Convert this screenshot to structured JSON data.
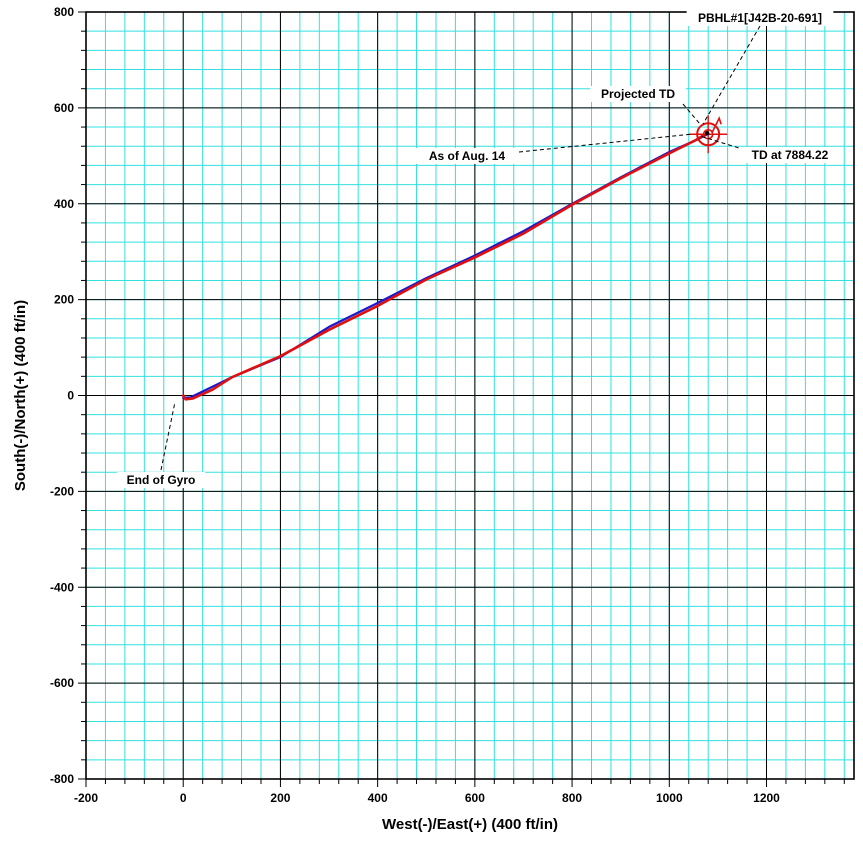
{
  "chart_data": {
    "type": "line",
    "xlabel": "West(-)/East(+) (400 ft/in)",
    "ylabel": "South(-)/North(+) (400 ft/in)",
    "xlim": [
      -200,
      1380
    ],
    "ylim": [
      -800,
      800
    ],
    "x_ticks": [
      -200,
      0,
      200,
      400,
      600,
      800,
      1000,
      1200
    ],
    "y_ticks": [
      -800,
      -600,
      -400,
      -200,
      0,
      200,
      400,
      600,
      800
    ],
    "x_tick_labels": [
      "-200",
      "0",
      "200",
      "400",
      "600",
      "800",
      "1000",
      "1200"
    ],
    "y_tick_labels": [
      "-800",
      "-600",
      "-400",
      "-200",
      "0",
      "200",
      "400",
      "600",
      "800"
    ],
    "grid": true,
    "minor_grid_step": 40,
    "colors": {
      "minor_grid": "#33e0e0",
      "major_grid": "#000000",
      "planned": "#1a1acc",
      "actual": "#e01010",
      "target": "#e01010"
    },
    "series": [
      {
        "key": "planned",
        "x": [
          0,
          15,
          100,
          200,
          300,
          400,
          500,
          600,
          700,
          800,
          900,
          1000,
          1060,
          1078
        ],
        "y": [
          -5,
          -4,
          38,
          80,
          143,
          193,
          245,
          292,
          343,
          400,
          455,
          508,
          535,
          545
        ]
      },
      {
        "key": "actual",
        "x": [
          0,
          5,
          20,
          60,
          100,
          200,
          300,
          400,
          500,
          600,
          700,
          800,
          900,
          1000,
          1055,
          1072
        ],
        "y": [
          0,
          -8,
          -6,
          12,
          38,
          82,
          137,
          187,
          242,
          288,
          338,
          398,
          453,
          505,
          533,
          544
        ]
      }
    ],
    "target": {
      "x": 1080,
      "y": 545
    },
    "annotations": [
      {
        "key": "end_of_gyro",
        "text": "End of Gyro",
        "point": [
          0,
          -5
        ]
      },
      {
        "key": "projected_td",
        "text": "Projected TD",
        "point": [
          1078,
          545
        ]
      },
      {
        "key": "as_of",
        "text": "As of Aug. 14",
        "point": [
          1072,
          542
        ]
      },
      {
        "key": "td_at",
        "text": "TD at 7884.22",
        "point": [
          1080,
          545
        ]
      },
      {
        "key": "pbhl",
        "text": "PBHL#1[J42B-20-691]",
        "point": [
          1085,
          560
        ]
      }
    ]
  }
}
